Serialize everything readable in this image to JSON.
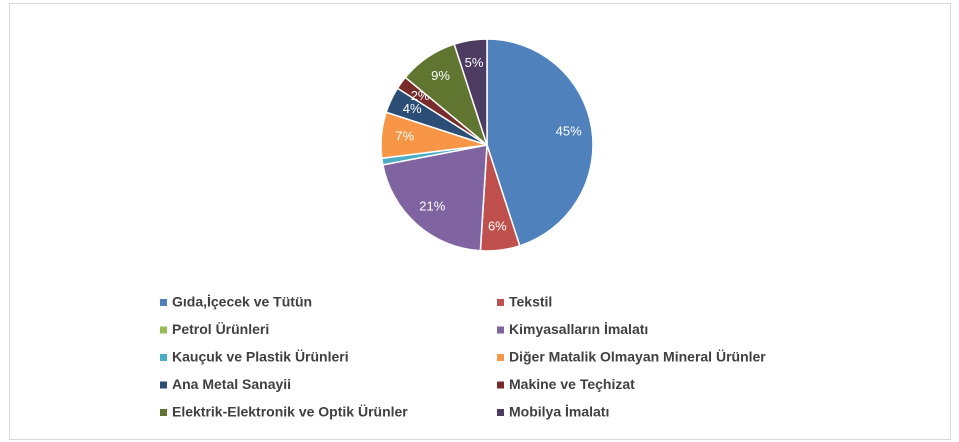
{
  "chart_data": {
    "type": "pie",
    "categories": [
      "Gıda,İçecek ve Tütün",
      "Tekstil",
      "Petrol Ürünleri",
      "Kimyasalların İmalatı",
      "Kauçuk ve Plastik Ürünleri",
      "Diğer Matalik Olmayan Mineral Ürünler",
      "Ana Metal Sanayii",
      "Makine ve Teçhizat",
      "Elektrik-Elektronik ve Optik Ürünler",
      "Mobilya İmalatı"
    ],
    "values": [
      45,
      6,
      0,
      21,
      1,
      7,
      4,
      2,
      9,
      5
    ],
    "value_labels": [
      "45%",
      "6%",
      null,
      "21%",
      null,
      "7%",
      "4%",
      "2%",
      "9%",
      "5%"
    ],
    "colors": [
      "#4f81bd",
      "#c0504d",
      "#9bbb59",
      "#8064a2",
      "#4bacc6",
      "#f79646",
      "#2c4d75",
      "#772c2a",
      "#5f7530",
      "#4d3b62"
    ],
    "legend": "bottom"
  }
}
